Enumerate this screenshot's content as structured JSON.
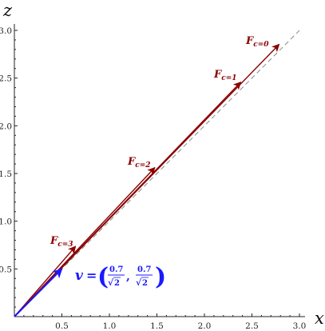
{
  "axes": {
    "x_title": "x",
    "y_title": "z",
    "x_ticks": [
      "0.5",
      "1.0",
      "1.5",
      "2.0",
      "2.5",
      "3.0"
    ],
    "y_ticks": [
      "0.5",
      "1.0",
      "1.5",
      "2.0",
      "2.5",
      "3.0"
    ]
  },
  "forces": [
    {
      "label": "F",
      "subscript": "c=0",
      "tip": [
        2.82,
        2.82
      ]
    },
    {
      "label": "F",
      "subscript": "c=1",
      "tip": [
        2.42,
        2.42
      ]
    },
    {
      "label": "F",
      "subscript": "c=2",
      "tip": [
        1.52,
        1.52
      ]
    },
    {
      "label": "F",
      "subscript": "c=3",
      "tip": [
        0.69,
        0.69
      ]
    }
  ],
  "velocity": {
    "symbol": "v",
    "equals": "=",
    "num1": "0.7",
    "den1": "2",
    "num2": "0.7",
    "den2": "2",
    "comma": ",",
    "tip": [
      0.5,
      0.5
    ]
  },
  "colors": {
    "force": "#8b0000",
    "velocity": "#1a1aff",
    "reference_line": "#8a8a8a"
  },
  "chart_data": {
    "type": "line",
    "title": "",
    "xlabel": "x",
    "ylabel": "z",
    "xlim": [
      0,
      3.0
    ],
    "ylim": [
      0,
      3.0
    ],
    "reference_line": {
      "from": [
        0,
        0
      ],
      "to": [
        3.0,
        3.0
      ],
      "style": "dashed"
    },
    "vectors": [
      {
        "name": "F_{c=0}",
        "from": [
          0,
          0
        ],
        "to": [
          2.82,
          2.82
        ]
      },
      {
        "name": "F_{c=1}",
        "from": [
          0,
          0
        ],
        "to": [
          2.42,
          2.42
        ]
      },
      {
        "name": "F_{c=2}",
        "from": [
          0,
          0
        ],
        "to": [
          1.52,
          1.52
        ]
      },
      {
        "name": "F_{c=3}",
        "from": [
          0,
          0
        ],
        "to": [
          0.69,
          0.69
        ]
      },
      {
        "name": "v",
        "from": [
          0,
          0
        ],
        "to": [
          0.5,
          0.5
        ]
      }
    ]
  }
}
